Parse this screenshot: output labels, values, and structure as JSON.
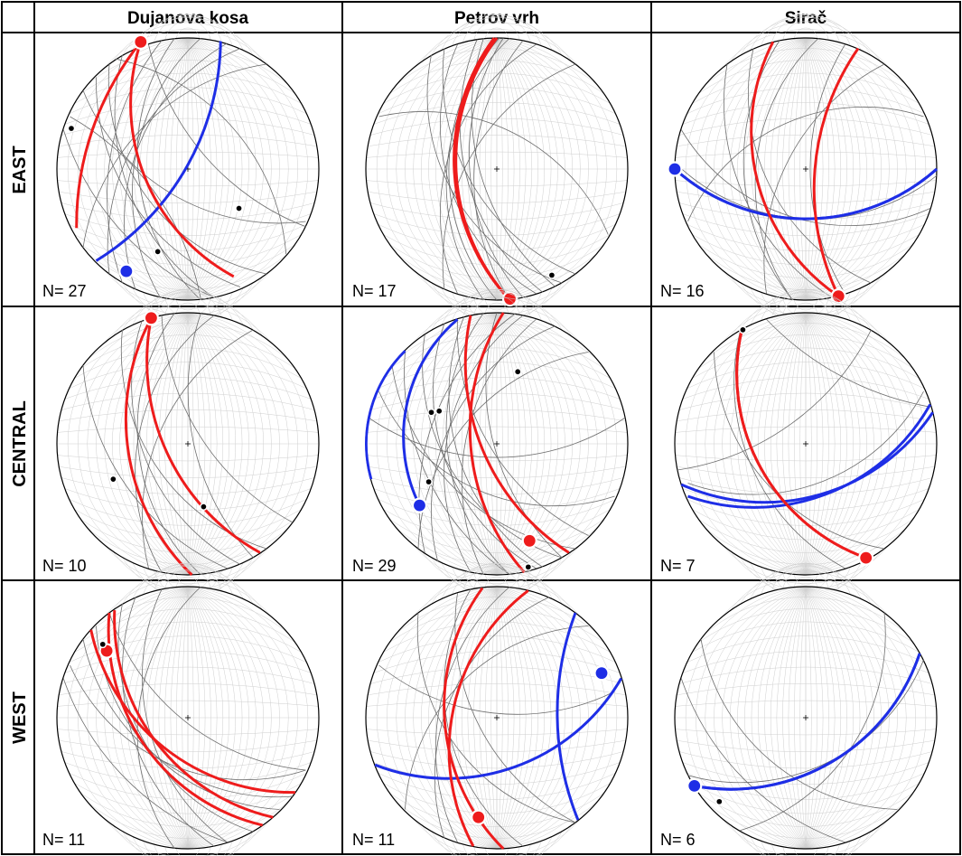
{
  "figure": {
    "columns": [
      "Dujanova kosa",
      "Petrov vrh",
      "Sirač"
    ],
    "rows": [
      "EAST",
      "CENTRAL",
      "WEST"
    ],
    "colors": {
      "red": "#ee1c1c",
      "blue": "#1e2ee6",
      "grey": "#6e6e6e",
      "grid": "#cfcfcf",
      "dot": "#000000"
    },
    "panels": [
      {
        "id": "east-dujanova-kosa",
        "n_label": "N= 27",
        "red": [
          [
            -0.36,
            0.97,
            0.35,
            -0.82
          ],
          [
            -0.36,
            0.97,
            -0.85,
            -0.45
          ]
        ],
        "blue": [
          [
            0.25,
            0.99,
            -0.7,
            -0.7,
            -0.42,
            0.31
          ],
          [
            -0.41,
            -0.93,
            0.39,
            0.38,
            -0.41,
            -0.93
          ]
        ],
        "grey": [
          [
            0.1,
            1,
            -0.2,
            -1
          ],
          [
            0.3,
            0.96,
            -0.4,
            -0.92
          ],
          [
            -0.1,
            1,
            0.1,
            -1
          ],
          [
            -0.8,
            0.6,
            0.9,
            -0.4
          ],
          [
            -0.6,
            0.8,
            0.6,
            -0.8
          ],
          [
            -0.2,
            0.98,
            -0.5,
            -0.87
          ],
          [
            0.6,
            0.8,
            -0.8,
            -0.6
          ],
          [
            0.4,
            0.92,
            -0.6,
            -0.8
          ],
          [
            -0.5,
            0.87,
            0.2,
            -0.98
          ],
          [
            0.1,
            -1,
            -0.9,
            0.4
          ],
          [
            -0.7,
            0.7,
            0.4,
            -0.9
          ],
          [
            0.75,
            -0.65,
            -0.55,
            0.84
          ],
          [
            -0.3,
            0.95,
            0.9,
            -0.44
          ],
          [
            -0.95,
            0.3,
            0.2,
            -0.98
          ]
        ],
        "red_points": [
          [
            -0.36,
            0.97
          ]
        ],
        "blue_points": [
          [
            -0.47,
            -0.78
          ]
        ],
        "dots": [
          [
            -0.89,
            0.31
          ],
          [
            0.39,
            -0.3
          ],
          [
            -0.23,
            -0.63
          ]
        ]
      },
      {
        "id": "east-petrov-vrh",
        "n_label": "N= 17",
        "red": [
          [
            -0.02,
            1,
            0.1,
            -1
          ],
          [
            0,
            1,
            0.1,
            -1
          ]
        ],
        "blue": [],
        "grey": [
          [
            0.02,
            1,
            0,
            -1
          ],
          [
            -0.3,
            0.95,
            0.3,
            -0.95
          ],
          [
            0.1,
            1,
            -0.1,
            -1
          ],
          [
            -0.15,
            0.99,
            0.35,
            -0.94
          ],
          [
            0.05,
            1,
            0.2,
            -0.98
          ],
          [
            -0.5,
            0.87,
            0.5,
            -0.87
          ],
          [
            0.3,
            0.95,
            -0.3,
            -0.95
          ],
          [
            0.6,
            0.8,
            -0.4,
            -0.92
          ],
          [
            -0.1,
            1,
            0.45,
            -0.9
          ],
          [
            0.85,
            -0.5,
            -0.9,
            0.4
          ],
          [
            0.2,
            0.98,
            0.1,
            -1
          ],
          [
            -0.4,
            0.92,
            0.6,
            -0.8
          ]
        ],
        "red_points": [
          [
            0.1,
            -0.99
          ]
        ],
        "blue_points": [],
        "dots": [
          [
            0.42,
            -0.81
          ]
        ]
      },
      {
        "id": "east-sirac",
        "n_label": "N= 16",
        "red": [
          [
            -0.25,
            0.97,
            0.25,
            -0.97
          ],
          [
            0.4,
            0.92,
            0.25,
            -0.97
          ]
        ],
        "blue": [
          [
            -1,
            0,
            1,
            0
          ],
          [
            -1,
            0,
            1,
            0
          ]
        ],
        "grey": [
          [
            -1,
            0,
            1,
            0
          ],
          [
            -1,
            0.05,
            1,
            -0.05
          ],
          [
            0.1,
            1,
            -0.1,
            -1
          ],
          [
            -0.4,
            0.92,
            0.5,
            -0.87
          ],
          [
            0.6,
            0.8,
            -0.3,
            -0.95
          ],
          [
            -0.6,
            0.8,
            0.2,
            -0.98
          ],
          [
            0.9,
            0.4,
            -0.9,
            -0.4
          ],
          [
            -0.95,
            0.3,
            0.95,
            -0.3
          ],
          [
            0.3,
            0.95,
            0.3,
            -0.95
          ],
          [
            -0.2,
            0.98,
            -0.1,
            -1
          ]
        ],
        "red_points": [
          [
            0.25,
            -0.97
          ]
        ],
        "blue_points": [
          [
            -1,
            0
          ]
        ],
        "dots": []
      },
      {
        "id": "central-dujanova-kosa",
        "n_label": "N= 10",
        "red": [
          [
            -0.28,
            0.96,
            0.55,
            -0.83
          ],
          [
            -0.28,
            0.96,
            0.03,
            -1
          ]
        ],
        "blue": [],
        "grey": [
          [
            -0.1,
            1,
            0.1,
            -1
          ],
          [
            -0.35,
            0.94,
            0.4,
            -0.92
          ],
          [
            0.2,
            0.98,
            -0.2,
            -0.98
          ],
          [
            -0.5,
            0.87,
            0.6,
            -0.8
          ],
          [
            0.1,
            1,
            0.5,
            -0.87
          ],
          [
            -0.8,
            0.6,
            0.3,
            -0.95
          ],
          [
            0.5,
            0.87,
            -0.3,
            -0.95
          ],
          [
            -0.2,
            0.98,
            0.8,
            -0.6
          ]
        ],
        "red_points": [
          [
            -0.28,
            0.96
          ]
        ],
        "blue_points": [],
        "dots": [
          [
            -0.57,
            -0.27
          ],
          [
            0.12,
            -0.48
          ]
        ]
      },
      {
        "id": "central-petrov-vrh",
        "n_label": "N= 29",
        "red": [
          [
            -0.2,
            0.98,
            0.55,
            -0.83
          ],
          [
            0.05,
            1,
            0.21,
            -0.98
          ]
        ],
        "blue": [
          [
            -0.7,
            0.71,
            -0.96,
            -0.27,
            0.98,
            -0.17
          ],
          [
            -0.3,
            0.95,
            -0.59,
            -0.47,
            -0.08,
            -0.99
          ]
        ],
        "grey": [
          [
            -0.1,
            1,
            0.1,
            -1
          ],
          [
            -0.4,
            0.92,
            0.3,
            -0.95
          ],
          [
            0.2,
            0.98,
            -0.2,
            -0.98
          ],
          [
            -0.55,
            0.83,
            0.5,
            -0.87
          ],
          [
            0,
            1,
            0.5,
            -0.87
          ],
          [
            -0.7,
            0.7,
            0.1,
            -1
          ],
          [
            0.45,
            0.9,
            -0.45,
            -0.9
          ],
          [
            -0.3,
            0.95,
            0.7,
            -0.7
          ],
          [
            -0.9,
            0.4,
            0.9,
            -0.4
          ],
          [
            0.7,
            0.7,
            -0.6,
            -0.8
          ],
          [
            -0.8,
            0.6,
            0.6,
            -0.8
          ],
          [
            0.15,
            1,
            -0.55,
            -0.83
          ],
          [
            -0.98,
            0.2,
            0.98,
            0.2
          ],
          [
            -0.25,
            0.97,
            0.35,
            -0.94
          ],
          [
            0.3,
            0.95,
            -0.1,
            -1
          ]
        ],
        "red_points": [
          [
            0.25,
            -0.74
          ]
        ],
        "blue_points": [
          [
            -0.59,
            -0.47
          ]
        ],
        "dots": [
          [
            0.16,
            0.55
          ],
          [
            -0.44,
            0.25
          ],
          [
            -0.5,
            0.24
          ],
          [
            -0.52,
            -0.29
          ],
          [
            0.24,
            -0.94
          ]
        ]
      },
      {
        "id": "central-sirac",
        "n_label": "N= 7",
        "red": [
          [
            -0.49,
            0.86,
            0.46,
            -0.87
          ],
          [
            -0.49,
            0.86,
            0.46,
            -0.87
          ]
        ],
        "blue": [
          [
            -0.95,
            -0.31,
            0.97,
            0.24
          ],
          [
            -0.9,
            -0.4,
            0.95,
            0.3
          ]
        ],
        "grey": [
          [
            -0.7,
            0.7,
            0.6,
            -0.8
          ],
          [
            -0.9,
            -0.3,
            0.9,
            0.4
          ],
          [
            -0.3,
            0.95,
            0.96,
            0.28
          ],
          [
            -0.98,
            -0.2,
            0.5,
            0.87
          ],
          [
            -0.5,
            0.86,
            0.3,
            -0.95
          ]
        ],
        "red_points": [
          [
            0.46,
            -0.87
          ]
        ],
        "blue_points": [],
        "dots": [
          [
            -0.48,
            0.87
          ]
        ]
      },
      {
        "id": "west-dujanova-kosa",
        "n_label": "N= 11",
        "red": [
          [
            -0.56,
            0.82,
            0.65,
            -0.76
          ],
          [
            -0.74,
            0.67,
            0.82,
            -0.57
          ],
          [
            -0.6,
            0.8,
            0.57,
            -0.82
          ]
        ],
        "blue": [],
        "grey": [
          [
            -0.8,
            0.6,
            0.8,
            -0.6
          ],
          [
            -0.7,
            0.7,
            0.7,
            -0.7
          ],
          [
            -0.9,
            0.4,
            0.9,
            -0.4
          ],
          [
            -0.5,
            0.87,
            0.5,
            -0.87
          ],
          [
            -0.2,
            0.98,
            0.3,
            -0.95
          ],
          [
            -0.95,
            0.3,
            0.3,
            -0.95
          ],
          [
            0.1,
            1,
            -0.1,
            -1
          ],
          [
            -0.6,
            0.8,
            0.9,
            -0.4
          ],
          [
            -0.4,
            0.92,
            0.2,
            -0.98
          ]
        ],
        "red_points": [
          [
            -0.62,
            0.51
          ]
        ],
        "blue_points": [],
        "dots": [
          [
            -0.65,
            0.56
          ]
        ]
      },
      {
        "id": "west-petrov-vrh",
        "n_label": "N= 11",
        "red": [
          [
            -0.11,
            0.99,
            0.05,
            -1
          ],
          [
            0.24,
            0.97,
            -0.18,
            -0.98
          ]
        ],
        "blue": [
          [
            -0.93,
            -0.36,
            0.95,
            0.3
          ],
          [
            0.6,
            0.8,
            0.62,
            -0.78
          ]
        ],
        "grey": [
          [
            -0.2,
            0.98,
            0.2,
            -0.98
          ],
          [
            0.4,
            0.92,
            -0.4,
            -0.92
          ],
          [
            -0.9,
            0.4,
            0.9,
            0.2
          ],
          [
            -0.6,
            0.8,
            0.6,
            -0.8
          ],
          [
            0.1,
            1,
            -0.3,
            -0.95
          ],
          [
            -0.3,
            0.95,
            0.6,
            -0.8
          ],
          [
            0.7,
            0.7,
            -0.7,
            -0.7
          ]
        ],
        "red_points": [
          [
            -0.14,
            -0.76
          ]
        ],
        "blue_points": [
          [
            0.8,
            0.34
          ]
        ],
        "dots": []
      },
      {
        "id": "west-sirac",
        "n_label": "N= 6",
        "red": [],
        "blue": [
          [
            -0.85,
            -0.52,
            0.87,
            0.49
          ],
          [
            -0.85,
            -0.52,
            0.87,
            0.49
          ]
        ],
        "grey": [
          [
            -0.8,
            0.6,
            0.7,
            -0.7
          ],
          [
            -0.9,
            -0.44,
            0.9,
            0.44
          ],
          [
            -0.5,
            -0.86,
            0.6,
            0.8
          ],
          [
            -0.95,
            0.3,
            0.3,
            -0.95
          ]
        ],
        "red_points": [],
        "blue_points": [
          [
            -0.85,
            -0.52
          ]
        ],
        "dots": [
          [
            -0.66,
            -0.64
          ]
        ]
      }
    ]
  }
}
